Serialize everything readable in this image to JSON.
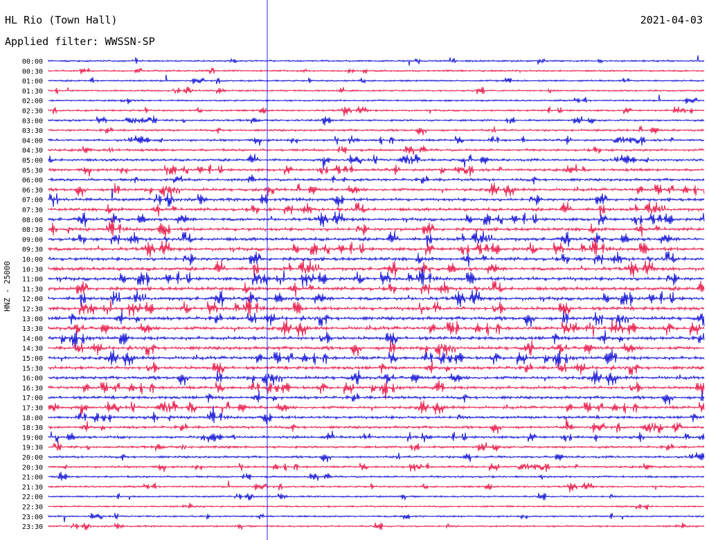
{
  "header": {
    "station": "HL Rio (Town Hall)",
    "filter": "Applied filter: WWSSN-SP",
    "date": "2021-04-03"
  },
  "axis": {
    "ylabel": "HNZ - 25000"
  },
  "colors": {
    "trace_a": "#1a1ad6",
    "trace_b": "#e8214f",
    "marker": "#2222ee"
  },
  "rows": [
    "00:00",
    "00:30",
    "01:00",
    "01:30",
    "02:00",
    "02:30",
    "03:00",
    "03:30",
    "04:00",
    "04:30",
    "05:00",
    "05:30",
    "06:00",
    "06:30",
    "07:00",
    "07:30",
    "08:00",
    "08:30",
    "09:00",
    "09:30",
    "10:00",
    "10:30",
    "11:00",
    "11:30",
    "12:00",
    "12:30",
    "13:00",
    "13:30",
    "14:00",
    "14:30",
    "15:00",
    "15:30",
    "16:00",
    "16:30",
    "17:00",
    "17:30",
    "18:00",
    "18:30",
    "19:00",
    "19:30",
    "20:00",
    "20:30",
    "21:00",
    "21:30",
    "22:00",
    "22:30",
    "23:00",
    "23:30"
  ]
}
